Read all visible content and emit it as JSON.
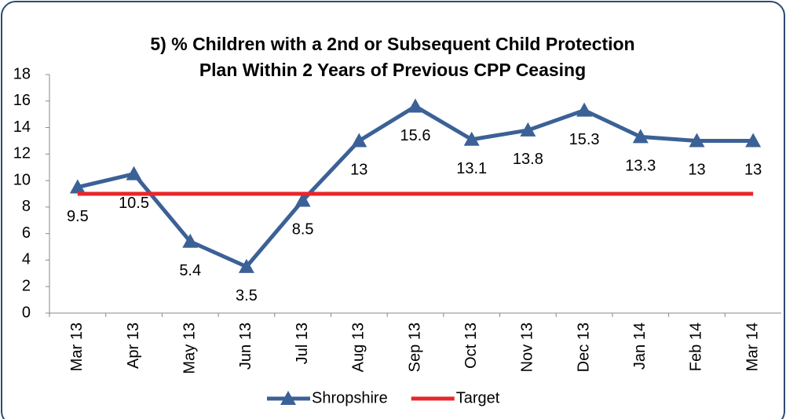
{
  "chart_data": {
    "type": "line",
    "title": "5) % Children with a 2nd or Subsequent Child Protection\nPlan Within 2 Years of Previous CPP Ceasing",
    "categories": [
      "Mar 13",
      "Apr 13",
      "May 13",
      "Jun 13",
      "Jul 13",
      "Aug 13",
      "Sep 13",
      "Oct 13",
      "Nov 13",
      "Dec 13",
      "Jan 14",
      "Feb 14",
      "Mar 14"
    ],
    "series": [
      {
        "name": "Shropshire",
        "color": "#3b6196",
        "marker": "triangle",
        "values": [
          9.5,
          10.5,
          5.4,
          3.5,
          8.5,
          13,
          15.6,
          13.1,
          13.8,
          15.3,
          13.3,
          13,
          13
        ],
        "data_labels": true
      },
      {
        "name": "Target",
        "color": "#e8262b",
        "values": [
          9,
          9,
          9,
          9,
          9,
          9,
          9,
          9,
          9,
          9,
          9,
          9,
          9
        ]
      }
    ],
    "ylim": [
      0,
      18
    ],
    "yticks": [
      0,
      2,
      4,
      6,
      8,
      10,
      12,
      14,
      16,
      18
    ],
    "grid": false,
    "legend": "bottom"
  }
}
